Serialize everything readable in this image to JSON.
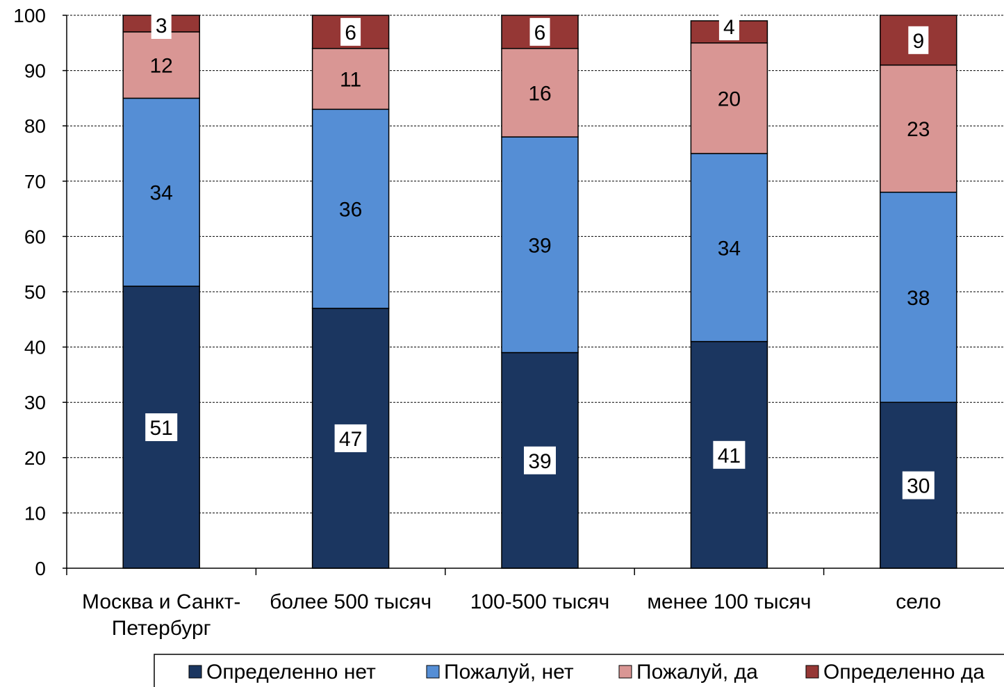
{
  "chart_data": {
    "type": "bar",
    "stacked": true,
    "categories": [
      [
        "Москва и Санкт-",
        "Петербург"
      ],
      [
        "более 500 тысяч"
      ],
      [
        "100-500 тысяч"
      ],
      [
        "менее 100 тысяч"
      ],
      [
        "село"
      ]
    ],
    "series": [
      {
        "name": "Определенно нет",
        "color": "#1b3660",
        "values": [
          51,
          47,
          39,
          41,
          30
        ]
      },
      {
        "name": "Пожалуй, нет",
        "color": "#558ed5",
        "values": [
          34,
          36,
          39,
          34,
          38
        ]
      },
      {
        "name": "Пожалуй, да",
        "color": "#d99694",
        "values": [
          12,
          11,
          16,
          20,
          23
        ]
      },
      {
        "name": "Определенно да",
        "color": "#953735",
        "values": [
          3,
          6,
          6,
          4,
          9
        ]
      }
    ],
    "ylim": [
      0,
      100
    ],
    "yticks": [
      0,
      10,
      20,
      30,
      40,
      50,
      60,
      70,
      80,
      90,
      100
    ],
    "grid": true,
    "legend_position": "bottom",
    "title": "",
    "xlabel": "",
    "ylabel": ""
  }
}
